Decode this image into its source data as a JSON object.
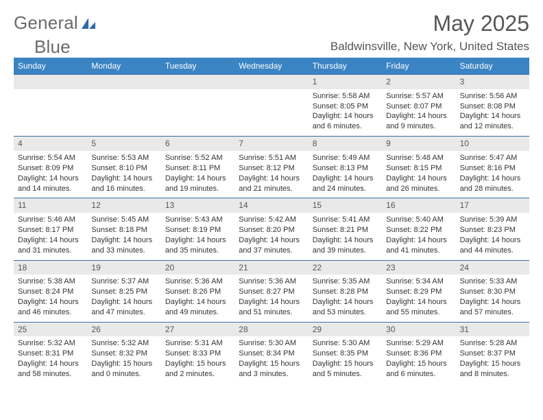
{
  "brand": {
    "name_part1": "General",
    "name_part2": "Blue"
  },
  "colors": {
    "header_bg": "#3b84c4",
    "band_bg": "#e9e9e9",
    "band_border": "#3b6ea0",
    "text": "#333333",
    "muted": "#555555"
  },
  "title": "May 2025",
  "location": "Baldwinsville, New York, United States",
  "day_headers": [
    "Sunday",
    "Monday",
    "Tuesday",
    "Wednesday",
    "Thursday",
    "Friday",
    "Saturday"
  ],
  "weeks": [
    [
      {
        "date": "",
        "lines": []
      },
      {
        "date": "",
        "lines": []
      },
      {
        "date": "",
        "lines": []
      },
      {
        "date": "",
        "lines": []
      },
      {
        "date": "1",
        "lines": [
          "Sunrise: 5:58 AM",
          "Sunset: 8:05 PM",
          "Daylight: 14 hours",
          "and 6 minutes."
        ]
      },
      {
        "date": "2",
        "lines": [
          "Sunrise: 5:57 AM",
          "Sunset: 8:07 PM",
          "Daylight: 14 hours",
          "and 9 minutes."
        ]
      },
      {
        "date": "3",
        "lines": [
          "Sunrise: 5:56 AM",
          "Sunset: 8:08 PM",
          "Daylight: 14 hours",
          "and 12 minutes."
        ]
      }
    ],
    [
      {
        "date": "4",
        "lines": [
          "Sunrise: 5:54 AM",
          "Sunset: 8:09 PM",
          "Daylight: 14 hours",
          "and 14 minutes."
        ]
      },
      {
        "date": "5",
        "lines": [
          "Sunrise: 5:53 AM",
          "Sunset: 8:10 PM",
          "Daylight: 14 hours",
          "and 16 minutes."
        ]
      },
      {
        "date": "6",
        "lines": [
          "Sunrise: 5:52 AM",
          "Sunset: 8:11 PM",
          "Daylight: 14 hours",
          "and 19 minutes."
        ]
      },
      {
        "date": "7",
        "lines": [
          "Sunrise: 5:51 AM",
          "Sunset: 8:12 PM",
          "Daylight: 14 hours",
          "and 21 minutes."
        ]
      },
      {
        "date": "8",
        "lines": [
          "Sunrise: 5:49 AM",
          "Sunset: 8:13 PM",
          "Daylight: 14 hours",
          "and 24 minutes."
        ]
      },
      {
        "date": "9",
        "lines": [
          "Sunrise: 5:48 AM",
          "Sunset: 8:15 PM",
          "Daylight: 14 hours",
          "and 26 minutes."
        ]
      },
      {
        "date": "10",
        "lines": [
          "Sunrise: 5:47 AM",
          "Sunset: 8:16 PM",
          "Daylight: 14 hours",
          "and 28 minutes."
        ]
      }
    ],
    [
      {
        "date": "11",
        "lines": [
          "Sunrise: 5:46 AM",
          "Sunset: 8:17 PM",
          "Daylight: 14 hours",
          "and 31 minutes."
        ]
      },
      {
        "date": "12",
        "lines": [
          "Sunrise: 5:45 AM",
          "Sunset: 8:18 PM",
          "Daylight: 14 hours",
          "and 33 minutes."
        ]
      },
      {
        "date": "13",
        "lines": [
          "Sunrise: 5:43 AM",
          "Sunset: 8:19 PM",
          "Daylight: 14 hours",
          "and 35 minutes."
        ]
      },
      {
        "date": "14",
        "lines": [
          "Sunrise: 5:42 AM",
          "Sunset: 8:20 PM",
          "Daylight: 14 hours",
          "and 37 minutes."
        ]
      },
      {
        "date": "15",
        "lines": [
          "Sunrise: 5:41 AM",
          "Sunset: 8:21 PM",
          "Daylight: 14 hours",
          "and 39 minutes."
        ]
      },
      {
        "date": "16",
        "lines": [
          "Sunrise: 5:40 AM",
          "Sunset: 8:22 PM",
          "Daylight: 14 hours",
          "and 41 minutes."
        ]
      },
      {
        "date": "17",
        "lines": [
          "Sunrise: 5:39 AM",
          "Sunset: 8:23 PM",
          "Daylight: 14 hours",
          "and 44 minutes."
        ]
      }
    ],
    [
      {
        "date": "18",
        "lines": [
          "Sunrise: 5:38 AM",
          "Sunset: 8:24 PM",
          "Daylight: 14 hours",
          "and 46 minutes."
        ]
      },
      {
        "date": "19",
        "lines": [
          "Sunrise: 5:37 AM",
          "Sunset: 8:25 PM",
          "Daylight: 14 hours",
          "and 47 minutes."
        ]
      },
      {
        "date": "20",
        "lines": [
          "Sunrise: 5:36 AM",
          "Sunset: 8:26 PM",
          "Daylight: 14 hours",
          "and 49 minutes."
        ]
      },
      {
        "date": "21",
        "lines": [
          "Sunrise: 5:36 AM",
          "Sunset: 8:27 PM",
          "Daylight: 14 hours",
          "and 51 minutes."
        ]
      },
      {
        "date": "22",
        "lines": [
          "Sunrise: 5:35 AM",
          "Sunset: 8:28 PM",
          "Daylight: 14 hours",
          "and 53 minutes."
        ]
      },
      {
        "date": "23",
        "lines": [
          "Sunrise: 5:34 AM",
          "Sunset: 8:29 PM",
          "Daylight: 14 hours",
          "and 55 minutes."
        ]
      },
      {
        "date": "24",
        "lines": [
          "Sunrise: 5:33 AM",
          "Sunset: 8:30 PM",
          "Daylight: 14 hours",
          "and 57 minutes."
        ]
      }
    ],
    [
      {
        "date": "25",
        "lines": [
          "Sunrise: 5:32 AM",
          "Sunset: 8:31 PM",
          "Daylight: 14 hours",
          "and 58 minutes."
        ]
      },
      {
        "date": "26",
        "lines": [
          "Sunrise: 5:32 AM",
          "Sunset: 8:32 PM",
          "Daylight: 15 hours",
          "and 0 minutes."
        ]
      },
      {
        "date": "27",
        "lines": [
          "Sunrise: 5:31 AM",
          "Sunset: 8:33 PM",
          "Daylight: 15 hours",
          "and 2 minutes."
        ]
      },
      {
        "date": "28",
        "lines": [
          "Sunrise: 5:30 AM",
          "Sunset: 8:34 PM",
          "Daylight: 15 hours",
          "and 3 minutes."
        ]
      },
      {
        "date": "29",
        "lines": [
          "Sunrise: 5:30 AM",
          "Sunset: 8:35 PM",
          "Daylight: 15 hours",
          "and 5 minutes."
        ]
      },
      {
        "date": "30",
        "lines": [
          "Sunrise: 5:29 AM",
          "Sunset: 8:36 PM",
          "Daylight: 15 hours",
          "and 6 minutes."
        ]
      },
      {
        "date": "31",
        "lines": [
          "Sunrise: 5:28 AM",
          "Sunset: 8:37 PM",
          "Daylight: 15 hours",
          "and 8 minutes."
        ]
      }
    ]
  ]
}
